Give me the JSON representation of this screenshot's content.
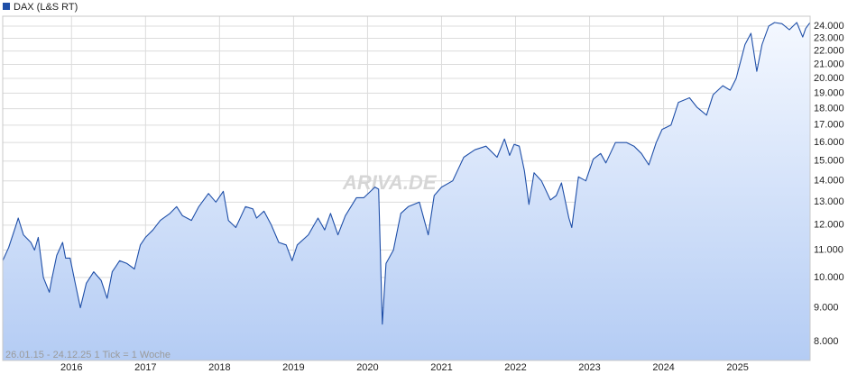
{
  "chart_data": {
    "type": "area",
    "legend": "DAX (L&S RT)",
    "watermark": "ARIVA.DE",
    "footer": "26.01.15 - 24.12.25   1 Tick = 1 Woche",
    "color": "#1f4fa8",
    "fill_top": "#f4f8ff",
    "fill_bottom": "#b4ccf4",
    "log_scale": true,
    "grid": true,
    "y_axis_side": "right",
    "xlim": [
      2015.07,
      2025.98
    ],
    "xticks": [
      2016,
      2017,
      2018,
      2019,
      2020,
      2021,
      2022,
      2023,
      2024,
      2025
    ],
    "ylim": [
      7490,
      24840
    ],
    "yticks": [
      {
        "value": 8000,
        "label": "8.000"
      },
      {
        "value": 9000,
        "label": "9.000"
      },
      {
        "value": 10000,
        "label": "10.000"
      },
      {
        "value": 11000,
        "label": "11.000"
      },
      {
        "value": 12000,
        "label": "12.000"
      },
      {
        "value": 13000,
        "label": "13.000"
      },
      {
        "value": 14000,
        "label": "14.000"
      },
      {
        "value": 15000,
        "label": "15.000"
      },
      {
        "value": 16000,
        "label": "16.000"
      },
      {
        "value": 17000,
        "label": "17.000"
      },
      {
        "value": 18000,
        "label": "18.000"
      },
      {
        "value": 19000,
        "label": "19.000"
      },
      {
        "value": 20000,
        "label": "20.000"
      },
      {
        "value": 21000,
        "label": "21.000"
      },
      {
        "value": 22000,
        "label": "22.000"
      },
      {
        "value": 23000,
        "label": "23.000"
      },
      {
        "value": 24000,
        "label": "24.000"
      }
    ],
    "x": [
      2015.07,
      2015.15,
      2015.25,
      2015.28,
      2015.35,
      2015.45,
      2015.5,
      2015.55,
      2015.62,
      2015.7,
      2015.73,
      2015.8,
      2015.88,
      2015.92,
      2015.98,
      2016.05,
      2016.12,
      2016.2,
      2016.3,
      2016.4,
      2016.48,
      2016.55,
      2016.65,
      2016.75,
      2016.85,
      2016.93,
      2017.0,
      2017.1,
      2017.2,
      2017.33,
      2017.42,
      2017.5,
      2017.62,
      2017.72,
      2017.85,
      2017.95,
      2018.05,
      2018.12,
      2018.22,
      2018.35,
      2018.45,
      2018.5,
      2018.6,
      2018.7,
      2018.8,
      2018.9,
      2018.98,
      2019.05,
      2019.2,
      2019.33,
      2019.42,
      2019.5,
      2019.6,
      2019.7,
      2019.85,
      2019.95,
      2020.1,
      2020.15,
      2020.2,
      2020.25,
      2020.35,
      2020.45,
      2020.55,
      2020.7,
      2020.82,
      2020.9,
      2021.0,
      2021.15,
      2021.3,
      2021.45,
      2021.6,
      2021.75,
      2021.85,
      2021.92,
      2021.98,
      2022.05,
      2022.12,
      2022.18,
      2022.25,
      2022.35,
      2022.47,
      2022.55,
      2022.62,
      2022.72,
      2022.76,
      2022.85,
      2022.95,
      2023.05,
      2023.15,
      2023.22,
      2023.35,
      2023.5,
      2023.6,
      2023.7,
      2023.8,
      2023.9,
      2023.98,
      2024.1,
      2024.2,
      2024.35,
      2024.45,
      2024.58,
      2024.67,
      2024.8,
      2024.9,
      2024.98,
      2025.1,
      2025.18,
      2025.26,
      2025.33,
      2025.42,
      2025.5,
      2025.6,
      2025.7,
      2025.8,
      2025.88,
      2025.92,
      2025.98
    ],
    "values": [
      10600,
      11100,
      12000,
      12300,
      11600,
      11300,
      11000,
      11500,
      10000,
      9500,
      9900,
      10800,
      11300,
      10700,
      10700,
      9800,
      9000,
      9800,
      10200,
      9900,
      9300,
      10200,
      10600,
      10500,
      10300,
      11200,
      11500,
      11800,
      12200,
      12500,
      12800,
      12400,
      12200,
      12800,
      13400,
      13000,
      13500,
      12200,
      11900,
      12800,
      12700,
      12300,
      12600,
      12000,
      11300,
      11200,
      10600,
      11200,
      11600,
      12300,
      11800,
      12500,
      11600,
      12400,
      13200,
      13200,
      13700,
      13600,
      8500,
      10500,
      11000,
      12500,
      12800,
      13000,
      11600,
      13300,
      13700,
      14000,
      15200,
      15600,
      15800,
      15200,
      16200,
      15300,
      15900,
      15800,
      14500,
      12900,
      14400,
      14000,
      13100,
      13300,
      13900,
      12300,
      11900,
      14200,
      14000,
      15100,
      15400,
      14900,
      16000,
      16000,
      15800,
      15400,
      14800,
      16000,
      16750,
      17000,
      18400,
      18700,
      18100,
      17600,
      18900,
      19500,
      19200,
      20000,
      22500,
      23400,
      20500,
      22500,
      24000,
      24300,
      24200,
      23700,
      24300,
      23100,
      23800,
      24300
    ]
  }
}
